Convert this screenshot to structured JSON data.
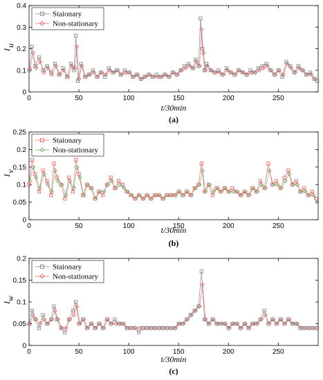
{
  "chart_data": [
    {
      "type": "line",
      "panel_label": "(a)",
      "xlabel": "t/30min",
      "ylabel": "I",
      "ylabel_sub": "u",
      "xlim": [
        0,
        290
      ],
      "ylim": [
        0,
        0.4
      ],
      "xticks": [
        0,
        50,
        100,
        150,
        200,
        250
      ],
      "yticks": [
        0,
        0.1,
        0.2,
        0.3,
        0.4
      ],
      "ytick_labels": [
        "0",
        "0.1",
        "0.2",
        "0.3",
        "0.4"
      ],
      "legend": {
        "position": "top-left",
        "order": [
          "Staionary",
          "Non-stationary"
        ]
      },
      "series": [
        {
          "name": "Staionary",
          "color": "#7f7f7f",
          "marker": "square",
          "x": [
            0,
            3,
            6,
            10,
            14,
            18,
            22,
            26,
            30,
            34,
            38,
            42,
            45,
            47,
            49,
            52,
            56,
            60,
            64,
            68,
            72,
            76,
            80,
            84,
            88,
            92,
            96,
            100,
            104,
            108,
            112,
            116,
            120,
            124,
            128,
            132,
            136,
            140,
            144,
            148,
            152,
            156,
            160,
            164,
            167,
            170,
            172,
            174,
            176,
            178,
            182,
            186,
            190,
            194,
            198,
            202,
            206,
            210,
            214,
            218,
            222,
            226,
            230,
            234,
            238,
            242,
            246,
            250,
            254,
            258,
            262,
            266,
            270,
            274,
            278,
            282,
            286,
            289
          ],
          "values": [
            0.1,
            0.21,
            0.12,
            0.16,
            0.1,
            0.12,
            0.09,
            0.13,
            0.08,
            0.11,
            0.07,
            0.13,
            0.1,
            0.26,
            0.05,
            0.13,
            0.07,
            0.08,
            0.1,
            0.07,
            0.09,
            0.07,
            0.11,
            0.09,
            0.1,
            0.08,
            0.1,
            0.09,
            0.07,
            0.08,
            0.06,
            0.07,
            0.08,
            0.07,
            0.08,
            0.07,
            0.08,
            0.07,
            0.09,
            0.08,
            0.1,
            0.12,
            0.13,
            0.11,
            0.15,
            0.12,
            0.34,
            0.2,
            0.1,
            0.13,
            0.1,
            0.09,
            0.1,
            0.08,
            0.11,
            0.09,
            0.08,
            0.1,
            0.09,
            0.08,
            0.1,
            0.09,
            0.11,
            0.12,
            0.13,
            0.1,
            0.08,
            0.1,
            0.07,
            0.14,
            0.12,
            0.09,
            0.12,
            0.1,
            0.08,
            0.09,
            0.06,
            0.05
          ]
        },
        {
          "name": "Non-stationary",
          "color": "#e06060",
          "marker": "diamond",
          "x": [
            1,
            4,
            7,
            11,
            15,
            19,
            23,
            27,
            31,
            35,
            39,
            43,
            46,
            48,
            50,
            53,
            57,
            61,
            65,
            69,
            73,
            77,
            81,
            85,
            89,
            93,
            97,
            101,
            105,
            109,
            113,
            117,
            121,
            125,
            129,
            133,
            137,
            141,
            145,
            149,
            153,
            157,
            161,
            165,
            168,
            171,
            173,
            175,
            177,
            179,
            183,
            187,
            191,
            195,
            199,
            203,
            207,
            211,
            215,
            219,
            223,
            227,
            231,
            235,
            239,
            243,
            247,
            251,
            255,
            259,
            263,
            267,
            271,
            275,
            279,
            283,
            287
          ],
          "values": [
            0.11,
            0.18,
            0.11,
            0.14,
            0.09,
            0.11,
            0.08,
            0.12,
            0.08,
            0.1,
            0.07,
            0.12,
            0.11,
            0.21,
            0.06,
            0.12,
            0.07,
            0.08,
            0.09,
            0.07,
            0.09,
            0.08,
            0.1,
            0.09,
            0.1,
            0.08,
            0.09,
            0.09,
            0.07,
            0.08,
            0.06,
            0.07,
            0.08,
            0.07,
            0.07,
            0.07,
            0.08,
            0.07,
            0.09,
            0.08,
            0.1,
            0.11,
            0.12,
            0.11,
            0.14,
            0.12,
            0.29,
            0.18,
            0.1,
            0.12,
            0.1,
            0.09,
            0.09,
            0.08,
            0.1,
            0.09,
            0.08,
            0.1,
            0.09,
            0.08,
            0.09,
            0.09,
            0.1,
            0.11,
            0.12,
            0.1,
            0.08,
            0.1,
            0.08,
            0.13,
            0.11,
            0.09,
            0.11,
            0.1,
            0.08,
            0.08,
            0.06
          ]
        }
      ]
    },
    {
      "type": "line",
      "panel_label": "(b)",
      "xlabel": "t/30min",
      "ylabel": "I",
      "ylabel_sub": "v",
      "xlim": [
        0,
        290
      ],
      "ylim": [
        0,
        0.25
      ],
      "xticks": [
        0,
        50,
        100,
        150,
        200,
        250
      ],
      "yticks": [
        0,
        0.05,
        0.1,
        0.15,
        0.2,
        0.25
      ],
      "ytick_labels": [
        "0",
        "0.05",
        "0.1",
        "0.15",
        "0.2",
        "0.25"
      ],
      "legend": {
        "position": "top-left",
        "order": [
          "Staionary",
          "Non-stationary"
        ]
      },
      "series": [
        {
          "name": "Staionary",
          "color": "#e06060",
          "marker": "square",
          "x": [
            0,
            3,
            6,
            10,
            14,
            18,
            22,
            25,
            28,
            32,
            36,
            40,
            44,
            47,
            50,
            54,
            58,
            62,
            66,
            70,
            74,
            78,
            82,
            86,
            90,
            94,
            98,
            102,
            106,
            110,
            114,
            118,
            122,
            126,
            130,
            134,
            138,
            142,
            146,
            150,
            154,
            158,
            162,
            166,
            170,
            173,
            176,
            180,
            184,
            188,
            192,
            196,
            200,
            204,
            208,
            212,
            216,
            220,
            224,
            228,
            232,
            236,
            240,
            244,
            248,
            252,
            256,
            260,
            264,
            268,
            272,
            276,
            280,
            284,
            288
          ],
          "values": [
            0.1,
            0.17,
            0.13,
            0.08,
            0.14,
            0.11,
            0.07,
            0.16,
            0.12,
            0.1,
            0.06,
            0.12,
            0.08,
            0.17,
            0.13,
            0.07,
            0.1,
            0.09,
            0.06,
            0.08,
            0.07,
            0.1,
            0.12,
            0.09,
            0.11,
            0.1,
            0.08,
            0.07,
            0.06,
            0.07,
            0.06,
            0.07,
            0.06,
            0.07,
            0.07,
            0.06,
            0.07,
            0.07,
            0.07,
            0.08,
            0.07,
            0.08,
            0.07,
            0.09,
            0.1,
            0.16,
            0.08,
            0.1,
            0.07,
            0.09,
            0.08,
            0.09,
            0.08,
            0.09,
            0.08,
            0.07,
            0.08,
            0.07,
            0.09,
            0.08,
            0.11,
            0.09,
            0.16,
            0.1,
            0.11,
            0.09,
            0.12,
            0.14,
            0.1,
            0.11,
            0.08,
            0.09,
            0.07,
            0.08,
            0.06
          ]
        },
        {
          "name": "Non-stationary",
          "color": "#66a866",
          "marker": "diamond",
          "x": [
            1,
            4,
            7,
            11,
            15,
            19,
            23,
            26,
            29,
            33,
            37,
            41,
            45,
            48,
            51,
            55,
            59,
            63,
            67,
            71,
            75,
            79,
            83,
            87,
            91,
            95,
            99,
            103,
            107,
            111,
            115,
            119,
            123,
            127,
            131,
            135,
            139,
            143,
            147,
            151,
            155,
            159,
            163,
            167,
            171,
            174,
            177,
            181,
            185,
            189,
            193,
            197,
            201,
            205,
            209,
            213,
            217,
            221,
            225,
            229,
            233,
            237,
            241,
            245,
            249,
            253,
            257,
            261,
            265,
            269,
            273,
            277,
            281,
            285,
            289
          ],
          "values": [
            0.11,
            0.15,
            0.12,
            0.09,
            0.13,
            0.1,
            0.08,
            0.14,
            0.11,
            0.1,
            0.07,
            0.11,
            0.09,
            0.15,
            0.12,
            0.07,
            0.1,
            0.09,
            0.06,
            0.08,
            0.08,
            0.1,
            0.11,
            0.09,
            0.1,
            0.09,
            0.08,
            0.07,
            0.06,
            0.07,
            0.06,
            0.07,
            0.06,
            0.07,
            0.07,
            0.06,
            0.07,
            0.07,
            0.07,
            0.08,
            0.07,
            0.08,
            0.07,
            0.09,
            0.1,
            0.14,
            0.08,
            0.1,
            0.08,
            0.09,
            0.08,
            0.09,
            0.08,
            0.08,
            0.08,
            0.07,
            0.08,
            0.07,
            0.09,
            0.08,
            0.1,
            0.09,
            0.14,
            0.1,
            0.1,
            0.09,
            0.11,
            0.13,
            0.1,
            0.1,
            0.08,
            0.08,
            0.07,
            0.07,
            0.05
          ]
        }
      ]
    },
    {
      "type": "line",
      "panel_label": "(c)",
      "xlabel": "t/30min",
      "ylabel": "I",
      "ylabel_sub": "w",
      "xlim": [
        0,
        290
      ],
      "ylim": [
        0,
        0.2
      ],
      "xticks": [
        0,
        50,
        100,
        150,
        200,
        250
      ],
      "yticks": [
        0,
        0.05,
        0.1,
        0.15,
        0.2
      ],
      "ytick_labels": [
        "0",
        "0.05",
        "0.1",
        "0.15",
        "0.2"
      ],
      "legend": {
        "position": "top-left",
        "order": [
          "Staionary",
          "Non-stationary"
        ]
      },
      "series": [
        {
          "name": "Staionary",
          "color": "#7f7f7f",
          "marker": "square",
          "x": [
            0,
            3,
            6,
            10,
            14,
            18,
            22,
            25,
            28,
            32,
            36,
            40,
            44,
            47,
            50,
            54,
            58,
            62,
            66,
            70,
            74,
            78,
            82,
            86,
            90,
            94,
            98,
            102,
            106,
            110,
            114,
            118,
            122,
            126,
            130,
            134,
            138,
            142,
            146,
            150,
            154,
            158,
            162,
            166,
            170,
            173,
            176,
            180,
            184,
            188,
            192,
            196,
            200,
            204,
            208,
            212,
            216,
            220,
            224,
            228,
            232,
            236,
            240,
            244,
            248,
            252,
            256,
            260,
            264,
            268,
            272,
            276,
            280,
            284,
            288
          ],
          "values": [
            0.05,
            0.08,
            0.06,
            0.04,
            0.07,
            0.05,
            0.06,
            0.09,
            0.06,
            0.04,
            0.03,
            0.06,
            0.08,
            0.1,
            0.05,
            0.06,
            0.04,
            0.05,
            0.04,
            0.05,
            0.04,
            0.06,
            0.05,
            0.06,
            0.05,
            0.05,
            0.04,
            0.04,
            0.04,
            0.03,
            0.04,
            0.04,
            0.04,
            0.04,
            0.04,
            0.04,
            0.04,
            0.04,
            0.04,
            0.05,
            0.05,
            0.06,
            0.07,
            0.08,
            0.09,
            0.17,
            0.06,
            0.05,
            0.06,
            0.05,
            0.05,
            0.05,
            0.04,
            0.05,
            0.05,
            0.04,
            0.05,
            0.04,
            0.05,
            0.05,
            0.06,
            0.08,
            0.05,
            0.06,
            0.05,
            0.06,
            0.05,
            0.06,
            0.05,
            0.05,
            0.04,
            0.04,
            0.04,
            0.04,
            0.04
          ]
        },
        {
          "name": "Non-stationary",
          "color": "#e06060",
          "marker": "diamond",
          "x": [
            1,
            4,
            7,
            11,
            15,
            19,
            23,
            26,
            29,
            33,
            37,
            41,
            45,
            48,
            51,
            55,
            59,
            63,
            67,
            71,
            75,
            79,
            83,
            87,
            91,
            95,
            99,
            103,
            107,
            111,
            115,
            119,
            123,
            127,
            131,
            135,
            139,
            143,
            147,
            151,
            155,
            159,
            163,
            167,
            171,
            174,
            177,
            181,
            185,
            189,
            193,
            197,
            201,
            205,
            209,
            213,
            217,
            221,
            225,
            229,
            233,
            237,
            241,
            245,
            249,
            253,
            257,
            261,
            265,
            269,
            273,
            277,
            281,
            285,
            289
          ],
          "values": [
            0.05,
            0.07,
            0.06,
            0.05,
            0.06,
            0.05,
            0.06,
            0.08,
            0.06,
            0.04,
            0.04,
            0.06,
            0.07,
            0.09,
            0.05,
            0.06,
            0.04,
            0.05,
            0.04,
            0.05,
            0.04,
            0.06,
            0.05,
            0.05,
            0.05,
            0.05,
            0.04,
            0.04,
            0.04,
            0.04,
            0.04,
            0.04,
            0.04,
            0.04,
            0.04,
            0.04,
            0.04,
            0.04,
            0.04,
            0.05,
            0.05,
            0.06,
            0.07,
            0.08,
            0.09,
            0.14,
            0.06,
            0.05,
            0.06,
            0.05,
            0.05,
            0.05,
            0.04,
            0.05,
            0.05,
            0.04,
            0.05,
            0.04,
            0.05,
            0.05,
            0.06,
            0.07,
            0.05,
            0.06,
            0.05,
            0.06,
            0.05,
            0.06,
            0.05,
            0.05,
            0.04,
            0.04,
            0.04,
            0.04,
            0.04
          ]
        }
      ]
    }
  ]
}
